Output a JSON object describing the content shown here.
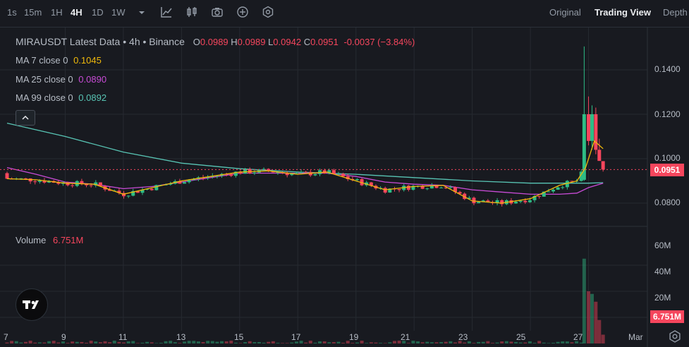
{
  "toolbar": {
    "timeframes": [
      "1s",
      "15m",
      "1H",
      "4H",
      "1D",
      "1W"
    ],
    "active": "4H",
    "views": [
      "Original",
      "Trading View",
      "Depth"
    ],
    "active_view": "Trading View"
  },
  "legend": {
    "symbol": "MIRAUSDT Latest Data • 4h • Binance",
    "open_label": "O",
    "open": "0.0989",
    "high_label": "H",
    "high": "0.0989",
    "low_label": "L",
    "low": "0.0942",
    "close_label": "C",
    "close": "0.0951",
    "change": "-0.0037 (−3.84%)",
    "ma7_label": "MA 7 close 0",
    "ma7_value": "0.1045",
    "ma25_label": "MA 25 close 0",
    "ma25_value": "0.0890",
    "ma99_label": "MA 99 close 0",
    "ma99_value": "0.0892"
  },
  "volume": {
    "label": "Volume",
    "value": "6.751M"
  },
  "price_axis": [
    "0.1400",
    "0.1200",
    "0.1000",
    "0.0800"
  ],
  "volume_axis": [
    "60M",
    "40M",
    "20M"
  ],
  "last_price": "0.0951",
  "last_volume": "6.751M",
  "date_axis": [
    "7",
    "9",
    "11",
    "13",
    "15",
    "17",
    "19",
    "21",
    "23",
    "25",
    "27",
    "Mar"
  ],
  "colors": {
    "up": "#2ebd85",
    "down": "#f6465d",
    "ma7": "#f0b90b",
    "ma25": "#c84bd6",
    "ma99": "#58c4b4",
    "bg": "#181a20"
  },
  "chart_data": {
    "type": "line",
    "title": "MIRAUSDT 4h",
    "x_ticks": [
      "7",
      "9",
      "11",
      "13",
      "15",
      "17",
      "19",
      "21",
      "23",
      "25",
      "27",
      "Mar"
    ],
    "ylim": [
      0.07,
      0.15
    ],
    "series": [
      {
        "name": "MA 7 close 0",
        "x": [
          7.0,
          8,
          9,
          10,
          11,
          12,
          13,
          14,
          15,
          16,
          17,
          18,
          19,
          20,
          21,
          22,
          23,
          24,
          25,
          26,
          26.6,
          26.9,
          27.2,
          27.5
        ],
        "values": [
          0.091,
          0.0905,
          0.089,
          0.0885,
          0.084,
          0.087,
          0.09,
          0.092,
          0.094,
          0.0945,
          0.093,
          0.094,
          0.09,
          0.086,
          0.0875,
          0.088,
          0.081,
          0.08,
          0.082,
          0.088,
          0.09,
          0.096,
          0.108,
          0.1045
        ]
      },
      {
        "name": "MA 25 close 0",
        "x": [
          7.0,
          8,
          9,
          10,
          11,
          12,
          13,
          14,
          15,
          16,
          17,
          18,
          19,
          20,
          21,
          22,
          23,
          24,
          25,
          26,
          26.6,
          27,
          27.5
        ],
        "values": [
          0.096,
          0.093,
          0.0895,
          0.0885,
          0.0865,
          0.0875,
          0.0895,
          0.0915,
          0.0935,
          0.0935,
          0.0935,
          0.0935,
          0.092,
          0.0895,
          0.0885,
          0.088,
          0.086,
          0.085,
          0.084,
          0.084,
          0.0845,
          0.087,
          0.089
        ]
      },
      {
        "name": "MA 99 close 0",
        "x": [
          7.0,
          9,
          11,
          13,
          15,
          17,
          19,
          21,
          23,
          25,
          27,
          27.5
        ],
        "values": [
          0.116,
          0.11,
          0.103,
          0.098,
          0.0955,
          0.094,
          0.093,
          0.0915,
          0.09,
          0.089,
          0.089,
          0.0892
        ]
      }
    ],
    "volume_ylim": [
      0,
      70
    ],
    "volume_units": "M"
  }
}
